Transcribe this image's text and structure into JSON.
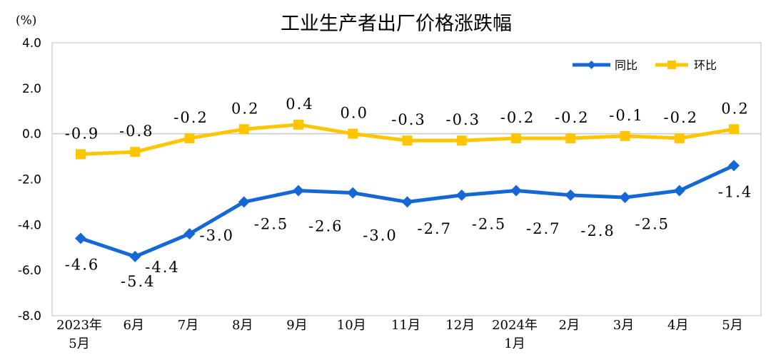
{
  "chart_data": {
    "type": "line",
    "title": "工业生产者出厂价格涨跌幅",
    "unit_label": "(%)",
    "categories": [
      [
        "2023年",
        "5月"
      ],
      [
        "6月"
      ],
      [
        "7月"
      ],
      [
        "8月"
      ],
      [
        "9月"
      ],
      [
        "10月"
      ],
      [
        "11月"
      ],
      [
        "12月"
      ],
      [
        "2024年",
        "1月"
      ],
      [
        "2月"
      ],
      [
        "3月"
      ],
      [
        "4月"
      ],
      [
        "5月"
      ]
    ],
    "ylim": [
      -8.0,
      4.0
    ],
    "yticks": [
      4.0,
      2.0,
      0.0,
      -2.0,
      -4.0,
      -6.0,
      -8.0
    ],
    "ytick_labels": [
      "4.0",
      "2.0",
      "0.0",
      "-2.0",
      "-4.0",
      "-6.0",
      "-8.0"
    ],
    "grid": false,
    "legend_position": "top-right",
    "series": [
      {
        "name": "同比",
        "color": "#1567d6",
        "marker": "diamond",
        "values": [
          -4.6,
          -5.4,
          -4.4,
          -3.0,
          -2.5,
          -2.6,
          -3.0,
          -2.7,
          -2.5,
          -2.7,
          -2.8,
          -2.5,
          -1.4
        ],
        "labels": [
          "-4.6",
          "-5.4",
          "-4.4",
          "-3.0",
          "-2.5",
          "-2.6",
          "-3.0",
          "-2.7",
          "-2.5",
          "-2.7",
          "-2.8",
          "-2.5",
          "-1.4"
        ]
      },
      {
        "name": "环比",
        "color": "#ffc600",
        "marker": "square",
        "values": [
          -0.9,
          -0.8,
          -0.2,
          0.2,
          0.4,
          0.0,
          -0.3,
          -0.3,
          -0.2,
          -0.2,
          -0.1,
          -0.2,
          0.2
        ],
        "labels": [
          "-0.9",
          "-0.8",
          "-0.2",
          "0.2",
          "0.4",
          "0.0",
          "-0.3",
          "-0.3",
          "-0.2",
          "-0.2",
          "-0.1",
          "-0.2",
          "0.2"
        ]
      }
    ]
  }
}
